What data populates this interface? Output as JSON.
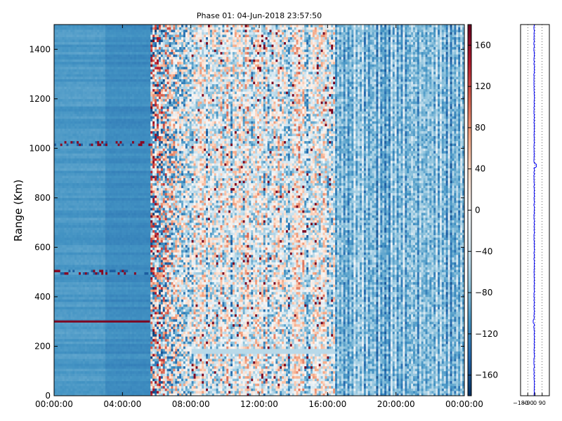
{
  "chart_data": [
    {
      "type": "heatmap",
      "title": "Phase 01: 04-Jun-2018 23:57:50",
      "ylabel": "Range (Km)",
      "xlabel": "",
      "x_ticks": [
        "00:00:00",
        "04:00:00",
        "08:00:00",
        "12:00:00",
        "16:00:00",
        "20:00:00",
        "00:00:00"
      ],
      "xlim_hours": [
        0,
        24
      ],
      "y_ticks": [
        0,
        200,
        400,
        600,
        800,
        1000,
        1200,
        1400
      ],
      "ylim": [
        0,
        1500
      ],
      "colormap": "RdBu_r",
      "colorbar": {
        "ticks": [
          -160,
          -120,
          -80,
          -40,
          0,
          40,
          80,
          120,
          160
        ],
        "tick_labels": [
          "−160",
          "−120",
          "−80",
          "−40",
          "0",
          "40",
          "80",
          "120",
          "160"
        ],
        "range": [
          -180,
          180
        ]
      },
      "features": [
        {
          "label": "quiet low-phase region",
          "x_hours": [
            0,
            5.6
          ],
          "phase_deg": -110
        },
        {
          "label": "strong-return line",
          "range_km": 300,
          "x_hours": [
            0,
            5.6
          ],
          "phase_deg": 170
        },
        {
          "label": "noisy transition band",
          "x_hours": [
            5.6,
            8.0
          ]
        },
        {
          "label": "mixed-phase region",
          "x_hours": [
            8.0,
            16.5
          ]
        },
        {
          "label": "striped low-phase region",
          "x_hours": [
            16.5,
            24
          ]
        }
      ]
    },
    {
      "type": "line",
      "x_ticks": [
        "−180",
        "−90",
        "0",
        "90"
      ],
      "xlim": [
        -180,
        180
      ],
      "ylim": [
        0,
        1500
      ],
      "grid": "dotted vertical",
      "series": [
        {
          "color": "#0000ff",
          "mean_value": -10
        }
      ]
    }
  ]
}
